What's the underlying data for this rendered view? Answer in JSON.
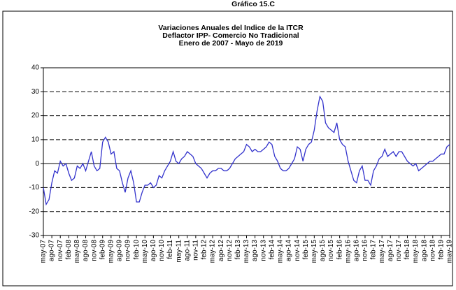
{
  "chart_data": {
    "type": "line",
    "header": "Gráfico 15.C",
    "title": [
      "Variaciones Anuales del Indice de la ITCR",
      "Deflactor IPP- Comercio No Tradicional",
      "Enero de 2007 - Mayo de 2019"
    ],
    "categories": [
      "may-07",
      null,
      null,
      "ago-07",
      null,
      null,
      "nov-07",
      null,
      null,
      "feb-08",
      null,
      null,
      "may-08",
      null,
      null,
      "ago-08",
      null,
      null,
      "nov-08",
      null,
      null,
      "feb-09",
      null,
      null,
      "may-09",
      null,
      null,
      "ago-09",
      null,
      null,
      "nov-09",
      null,
      null,
      "feb-10",
      null,
      null,
      "may-10",
      null,
      null,
      "ago-10",
      null,
      null,
      "nov-10",
      null,
      null,
      "feb-11",
      null,
      null,
      "may-11",
      null,
      null,
      "ago-11",
      null,
      null,
      "nov-11",
      null,
      null,
      "feb-12",
      null,
      null,
      "may-12",
      null,
      null,
      "ago-12",
      null,
      null,
      "nov-12",
      null,
      null,
      "feb-13",
      null,
      null,
      "may-13",
      null,
      null,
      "ago-13",
      null,
      null,
      "nov-13",
      null,
      null,
      "feb-14",
      null,
      null,
      "may-14",
      null,
      null,
      "ago-14",
      null,
      null,
      "nov-14",
      null,
      null,
      "feb-15",
      null,
      null,
      "may-15",
      null,
      null,
      "ago-15",
      null,
      null,
      "nov-15",
      null,
      null,
      "feb-16",
      null,
      null,
      "may-16",
      null,
      null,
      "ago-16",
      null,
      null,
      "nov-16",
      null,
      null,
      "feb-17",
      null,
      null,
      "may-17",
      null,
      null,
      "ago-17",
      null,
      null,
      "nov-17",
      null,
      null,
      "feb-18",
      null,
      null,
      "may-18",
      null,
      null,
      "ago-18",
      null,
      null,
      "nov-18",
      null,
      null,
      "feb-19",
      null,
      null,
      "may-19"
    ],
    "values": [
      -10,
      -17,
      -15,
      -8,
      -3,
      -4,
      1,
      -1,
      0,
      -4,
      -7,
      -6,
      -1,
      -2,
      0,
      -3,
      1,
      5,
      -1,
      -3,
      -2,
      9,
      11,
      9,
      4,
      5,
      -2,
      -3,
      -8,
      -12,
      -6,
      -3,
      -8,
      -16,
      -16,
      -12,
      -9,
      -9,
      -8,
      -10,
      -9,
      -5,
      -6,
      -3,
      -1,
      1,
      5,
      1,
      0,
      2,
      3,
      5,
      4,
      3,
      0,
      -1,
      -2,
      -4,
      -6,
      -4,
      -3,
      -3,
      -2,
      -2,
      -3,
      -3,
      -2,
      0,
      2,
      3,
      4,
      5,
      8,
      7,
      5,
      6,
      5,
      5,
      6,
      7,
      9,
      8,
      3,
      1,
      -2,
      -3,
      -3,
      -2,
      0,
      2,
      7,
      6,
      1,
      6,
      8,
      9,
      14,
      22,
      28,
      26,
      17,
      15,
      14,
      13,
      17,
      10,
      8,
      7,
      1,
      -3,
      -7,
      -8,
      -3,
      -1,
      -7,
      -7,
      -9,
      -3,
      -1,
      2,
      3,
      6,
      3,
      4,
      5,
      3,
      5,
      5,
      3,
      1,
      0,
      -1,
      0,
      -3,
      -2,
      -1,
      0,
      1,
      1,
      2,
      3,
      4,
      4,
      7,
      8
    ],
    "color": "#3333cc",
    "ylim": [
      -30,
      40
    ],
    "yticks": [
      -30,
      -20,
      -10,
      0,
      10,
      20,
      30,
      40
    ],
    "grid": true
  }
}
